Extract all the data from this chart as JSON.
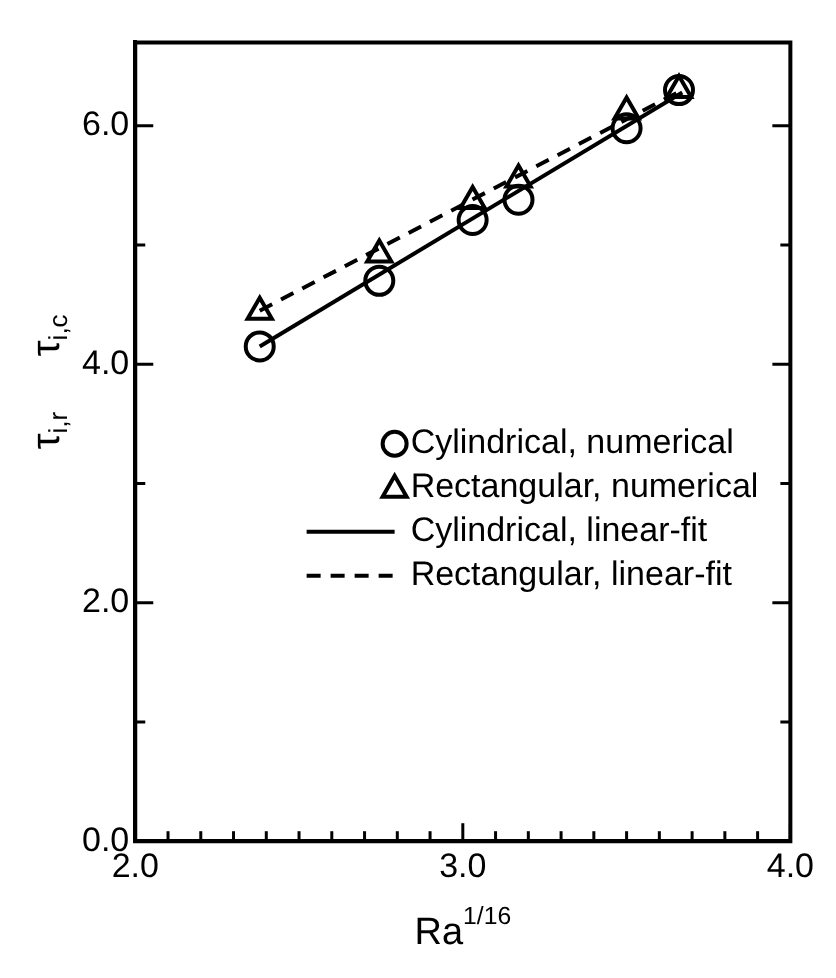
{
  "chart_data": {
    "type": "scatter",
    "xlabel": "Ra$^{1/16}$",
    "ylabel": "τ$_{i,r}$     τ$_{i,c}$",
    "xlim": [
      2.0,
      4.0
    ],
    "ylim": [
      0,
      6.7
    ],
    "xticks": [
      {
        "value": 2.0,
        "label": "2.0"
      },
      {
        "value": 2.1,
        "label": null
      },
      {
        "value": 2.2,
        "label": null
      },
      {
        "value": 2.3,
        "label": null
      },
      {
        "value": 2.4,
        "label": null
      },
      {
        "value": 2.5,
        "label": null
      },
      {
        "value": 2.6,
        "label": null
      },
      {
        "value": 2.7,
        "label": null
      },
      {
        "value": 2.8,
        "label": null
      },
      {
        "value": 2.9,
        "label": null
      },
      {
        "value": 3.0,
        "label": "3.0"
      },
      {
        "value": 3.1,
        "label": null
      },
      {
        "value": 3.2,
        "label": null
      },
      {
        "value": 3.3,
        "label": null
      },
      {
        "value": 3.4,
        "label": null
      },
      {
        "value": 3.5,
        "label": null
      },
      {
        "value": 3.6,
        "label": null
      },
      {
        "value": 3.7,
        "label": null
      },
      {
        "value": 3.8,
        "label": null
      },
      {
        "value": 3.9,
        "label": null
      },
      {
        "value": 4.0,
        "label": "4.0"
      }
    ],
    "yticks": [
      {
        "value": 0,
        "label": "0.0"
      },
      {
        "value": 1,
        "label": null
      },
      {
        "value": 2,
        "label": "2.0"
      },
      {
        "value": 3,
        "label": null
      },
      {
        "value": 4,
        "label": "4.0"
      },
      {
        "value": 5,
        "label": null
      },
      {
        "value": 6,
        "label": "6.0"
      }
    ],
    "grid": false,
    "legend": "center right",
    "series": [
      {
        "name": "Cylindrical, numerical",
        "type": "scatter",
        "marker": "circle",
        "color": "#000000",
        "x": [
          2.38,
          2.745,
          3.03,
          3.17,
          3.5,
          3.66
        ],
        "values": [
          4.15,
          4.7,
          5.21,
          5.38,
          5.98,
          6.3
        ]
      },
      {
        "name": "Rectangular, numerical",
        "type": "scatter",
        "marker": "triangle",
        "color": "#000000",
        "x": [
          2.38,
          2.745,
          3.03,
          3.17,
          3.5,
          3.66
        ],
        "values": [
          4.44,
          4.92,
          5.37,
          5.55,
          6.12,
          6.3
        ]
      },
      {
        "name": "Cylindrical, linear-fit",
        "type": "line",
        "line_style": "solid",
        "marker": "none",
        "color": "#000000",
        "x": [
          2.38,
          3.67
        ],
        "values": [
          4.15,
          6.28
        ]
      },
      {
        "name": "Rectangular, linear-fit",
        "type": "line",
        "line_style": "dashed",
        "marker": "none",
        "color": "#000000",
        "x": [
          2.38,
          3.67
        ],
        "values": [
          4.45,
          6.3
        ]
      }
    ]
  }
}
